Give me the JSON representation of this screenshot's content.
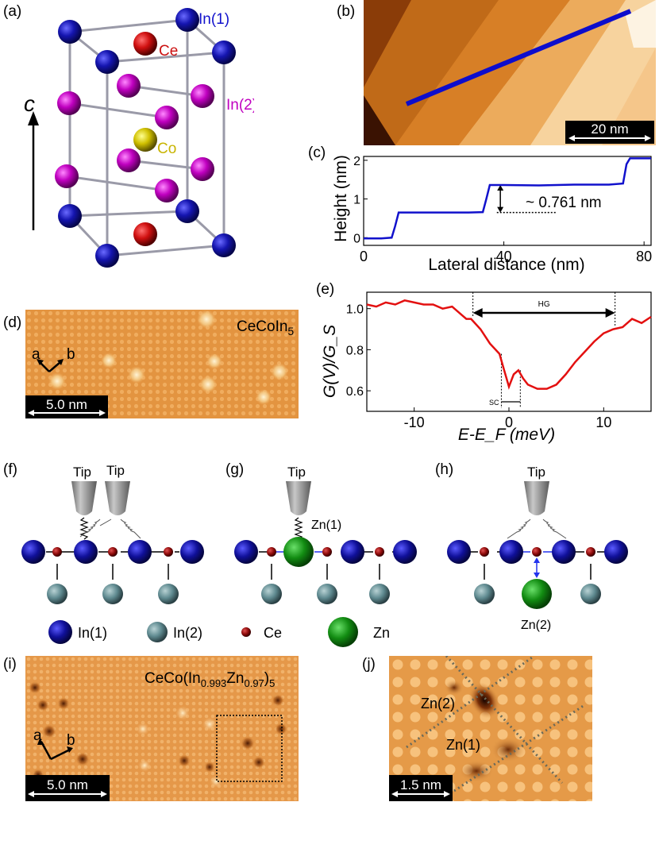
{
  "panels": {
    "a": {
      "label": "(a)",
      "axis_label": "c",
      "atoms": {
        "in1": "In(1)",
        "ce": "Ce",
        "in2": "In(2)",
        "co": "Co"
      }
    },
    "b": {
      "label": "(b)",
      "scale_bar": "20 nm"
    },
    "c": {
      "label": "(c)",
      "annotation": "~ 0.761 nm"
    },
    "d": {
      "label": "(d)",
      "compound": "CeCoIn",
      "compound_sub": "5",
      "axis_a": "a",
      "axis_b": "b",
      "scale_bar": "5.0 nm"
    },
    "e": {
      "label": "(e)",
      "hg_label": "HG",
      "sc_label": "SC"
    },
    "f": {
      "label": "(f)",
      "tip1": "Tip",
      "tip2": "Tip"
    },
    "g": {
      "label": "(g)",
      "tip": "Tip",
      "dopant": "Zn(1)"
    },
    "h": {
      "label": "(h)",
      "tip": "Tip",
      "dopant": "Zn(2)"
    },
    "legend": {
      "in1": "In(1)",
      "in2": "In(2)",
      "ce": "Ce",
      "zn": "Zn"
    },
    "i": {
      "label": "(i)",
      "compound_pre": "CeCo(In",
      "compound_sub1": "0.993",
      "compound_mid": "Zn",
      "compound_sub2": "0.97",
      "compound_post": ")",
      "compound_sub3": "5",
      "axis_a": "a",
      "axis_b": "b",
      "scale_bar": "5.0 nm"
    },
    "j": {
      "label": "(j)",
      "zn2": "Zn(2)",
      "zn1": "Zn(1)",
      "scale_bar": "1.5 nm"
    }
  },
  "colors": {
    "profile": "#1111cc",
    "spectrum": "#e31010",
    "in1": "#0a0a8c",
    "in2": "#5f8a90",
    "ce": "#8c0a0a",
    "zn": "#128c12",
    "ce_red": "#cc1111",
    "in2_magenta": "#c000c0",
    "co": "#d4c000"
  },
  "chart_data": [
    {
      "type": "line",
      "panel": "(c)",
      "title": "",
      "xlabel": "Lateral distance (nm)",
      "ylabel": "Height (nm)",
      "xlim": [
        0,
        82
      ],
      "ylim": [
        -0.2,
        2.1
      ],
      "xticks": [
        0,
        40,
        80
      ],
      "yticks": [
        0,
        1,
        2
      ],
      "series": [
        {
          "name": "height profile",
          "x": [
            0,
            5,
            8,
            9,
            10,
            20,
            30,
            34,
            35,
            36,
            40,
            50,
            60,
            70,
            74,
            75,
            76,
            82
          ],
          "y": [
            -0.02,
            -0.02,
            0.0,
            0.3,
            0.65,
            0.65,
            0.65,
            0.66,
            1.0,
            1.36,
            1.36,
            1.35,
            1.37,
            1.37,
            1.4,
            1.9,
            2.05,
            2.05
          ]
        }
      ]
    },
    {
      "type": "line",
      "panel": "(e)",
      "title": "",
      "xlabel": "E-E_F (meV)",
      "ylabel": "G(V)/G_S",
      "xlim": [
        -15,
        15
      ],
      "ylim": [
        0.5,
        1.08
      ],
      "xticks": [
        -10,
        0,
        10
      ],
      "yticks": [
        0.6,
        0.8,
        1.0
      ],
      "series": [
        {
          "name": "conductance",
          "x": [
            -15,
            -14,
            -13,
            -12,
            -11,
            -10,
            -9,
            -8,
            -7,
            -6,
            -5,
            -4.5,
            -4,
            -3,
            -2,
            -1,
            -0.5,
            0,
            0.5,
            1,
            1.5,
            2,
            3,
            4,
            5,
            6,
            7,
            8,
            9,
            10,
            11,
            12,
            13,
            14,
            15
          ],
          "y": [
            1.02,
            1.01,
            1.03,
            1.02,
            1.04,
            1.03,
            1.02,
            1.02,
            1.0,
            1.01,
            0.97,
            0.95,
            0.95,
            0.9,
            0.83,
            0.78,
            0.7,
            0.62,
            0.68,
            0.7,
            0.66,
            0.63,
            0.61,
            0.61,
            0.63,
            0.68,
            0.74,
            0.79,
            0.84,
            0.88,
            0.9,
            0.91,
            0.95,
            0.93,
            0.96
          ]
        }
      ],
      "annotations": {
        "HG_range": [
          -3.8,
          11.2
        ],
        "SC_range": [
          -0.8,
          1.2
        ]
      }
    }
  ]
}
